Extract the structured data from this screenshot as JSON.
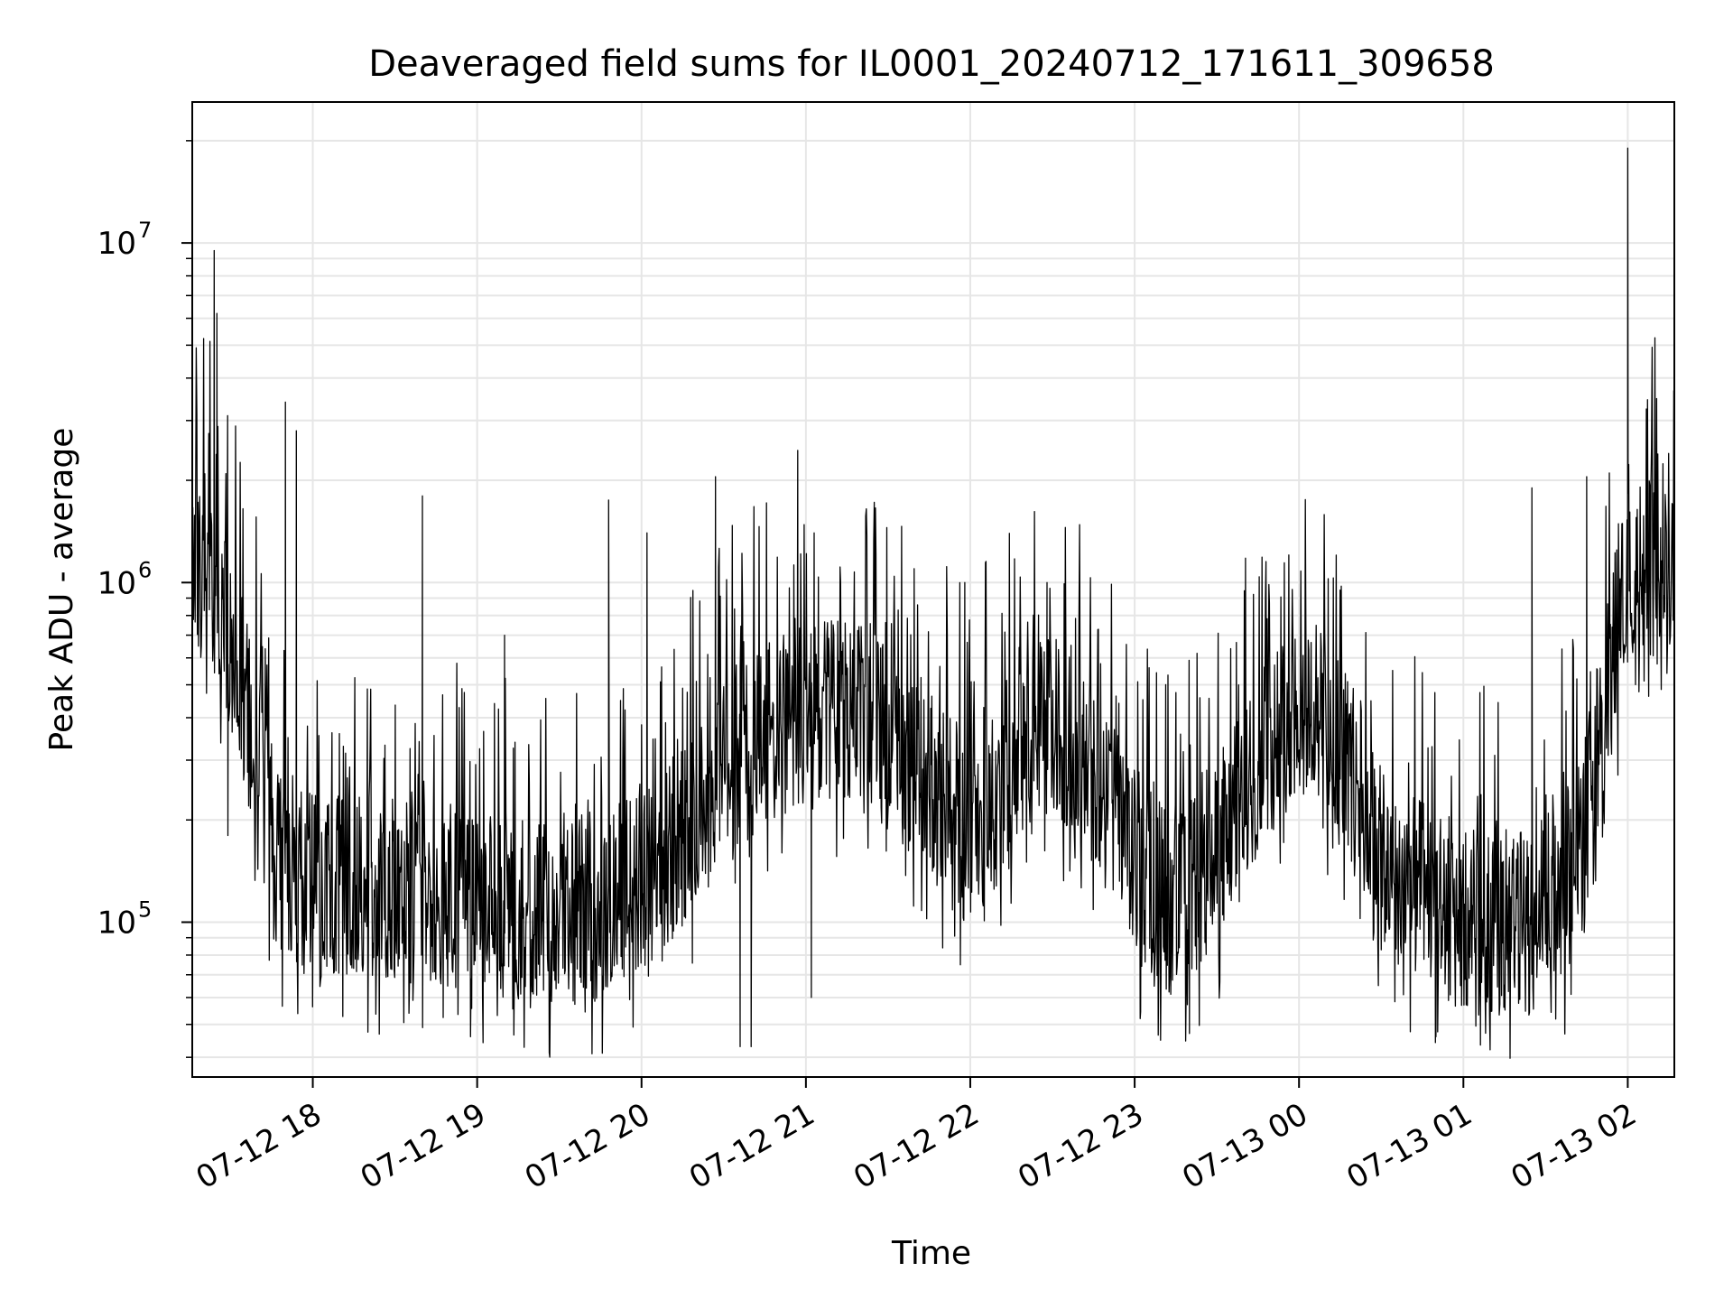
{
  "chart_data": {
    "type": "line",
    "title": "Deaveraged field sums for IL0001_20240712_171611_309658",
    "xlabel": "Time",
    "ylabel": "Peak ADU - average",
    "yscale": "log",
    "ylim": [
      35000,
      26000000
    ],
    "xlim": [
      "2024-07-12 17:16",
      "2024-07-13 02:17"
    ],
    "grid": true,
    "line_color": "#000000",
    "grid_color": "#e6e6e6",
    "x_ticks": [
      {
        "label": "07-12 18",
        "value": "2024-07-12 18:00"
      },
      {
        "label": "07-12 19",
        "value": "2024-07-12 19:00"
      },
      {
        "label": "07-12 20",
        "value": "2024-07-12 20:00"
      },
      {
        "label": "07-12 21",
        "value": "2024-07-12 21:00"
      },
      {
        "label": "07-12 22",
        "value": "2024-07-12 22:00"
      },
      {
        "label": "07-12 23",
        "value": "2024-07-12 23:00"
      },
      {
        "label": "07-13 00",
        "value": "2024-07-13 00:00"
      },
      {
        "label": "07-13 01",
        "value": "2024-07-13 01:00"
      },
      {
        "label": "07-13 02",
        "value": "2024-07-13 02:00"
      }
    ],
    "y_ticks": [
      {
        "base": "10",
        "exp": "5",
        "value": 100000
      },
      {
        "base": "10",
        "exp": "6",
        "value": 1000000
      },
      {
        "base": "10",
        "exp": "7",
        "value": 10000000
      }
    ],
    "series": [
      {
        "x": [
          "2024-07-12 17:16",
          "2024-07-12 17:22",
          "2024-07-12 17:28",
          "2024-07-12 17:34",
          "2024-07-12 17:40",
          "2024-07-12 17:46",
          "2024-07-12 17:52",
          "2024-07-12 18:00",
          "2024-07-12 18:15",
          "2024-07-12 18:30",
          "2024-07-12 18:45",
          "2024-07-12 19:00",
          "2024-07-12 19:15",
          "2024-07-12 19:30",
          "2024-07-12 19:45",
          "2024-07-12 20:00",
          "2024-07-12 20:15",
          "2024-07-12 20:30",
          "2024-07-12 20:45",
          "2024-07-12 21:00",
          "2024-07-12 21:15",
          "2024-07-12 21:30",
          "2024-07-12 21:45",
          "2024-07-12 22:00",
          "2024-07-12 22:15",
          "2024-07-12 22:30",
          "2024-07-12 22:45",
          "2024-07-12 23:00",
          "2024-07-12 23:15",
          "2024-07-12 23:30",
          "2024-07-12 23:45",
          "2024-07-13 00:00",
          "2024-07-13 00:15",
          "2024-07-13 00:30",
          "2024-07-13 00:45",
          "2024-07-13 01:00",
          "2024-07-13 01:15",
          "2024-07-13 01:25",
          "2024-07-13 01:30",
          "2024-07-13 01:38",
          "2024-07-13 01:45",
          "2024-07-13 01:52",
          "2024-07-13 02:00",
          "2024-07-13 02:08",
          "2024-07-13 02:17"
        ],
        "y": [
          1300000,
          1100000,
          800000,
          500000,
          300000,
          170000,
          130000,
          130000,
          130000,
          125000,
          120000,
          115000,
          110000,
          105000,
          110000,
          130000,
          180000,
          300000,
          350000,
          400000,
          420000,
          350000,
          250000,
          200000,
          300000,
          380000,
          280000,
          150000,
          110000,
          150000,
          300000,
          450000,
          350000,
          150000,
          120000,
          100000,
          100000,
          100000,
          130000,
          130000,
          200000,
          500000,
          1000000,
          1100000,
          950000
        ]
      }
    ],
    "spikes": [
      {
        "x": "2024-07-12 17:24",
        "y": 9500000
      },
      {
        "x": "2024-07-12 17:25",
        "y": 6200000
      },
      {
        "x": "2024-07-12 17:50",
        "y": 3400000
      },
      {
        "x": "2024-07-12 17:54",
        "y": 2800000
      },
      {
        "x": "2024-07-12 18:40",
        "y": 1800000
      },
      {
        "x": "2024-07-12 19:10",
        "y": 700000
      },
      {
        "x": "2024-07-12 19:48",
        "y": 1750000
      },
      {
        "x": "2024-07-12 20:02",
        "y": 1400000
      },
      {
        "x": "2024-07-12 20:27",
        "y": 2050000
      },
      {
        "x": "2024-07-12 20:57",
        "y": 2450000
      },
      {
        "x": "2024-07-12 21:03",
        "y": 1400000
      },
      {
        "x": "2024-07-12 21:58",
        "y": 1000000
      },
      {
        "x": "2024-07-12 22:28",
        "y": 1000000
      },
      {
        "x": "2024-07-13 00:15",
        "y": 950000
      },
      {
        "x": "2024-07-13 01:25",
        "y": 1900000
      },
      {
        "x": "2024-07-13 01:45",
        "y": 2050000
      },
      {
        "x": "2024-07-13 02:00",
        "y": 19000000
      },
      {
        "x": "2024-07-13 02:12",
        "y": 1450000
      }
    ],
    "dips": [
      {
        "x": "2024-07-12 17:29",
        "y": 180000
      },
      {
        "x": "2024-07-12 20:36",
        "y": 43000
      },
      {
        "x": "2024-07-12 20:40",
        "y": 43000
      },
      {
        "x": "2024-07-12 21:02",
        "y": 60000
      },
      {
        "x": "2024-07-12 23:02",
        "y": 52000
      },
      {
        "x": "2024-07-12 23:20",
        "y": 47000
      },
      {
        "x": "2024-07-13 00:50",
        "y": 46000
      },
      {
        "x": "2024-07-13 01:37",
        "y": 48000
      }
    ]
  }
}
